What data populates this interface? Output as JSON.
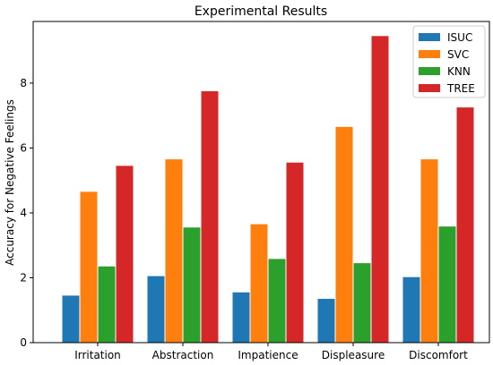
{
  "chart_data": {
    "type": "bar",
    "title": "Experimental Results",
    "xlabel": "",
    "ylabel": "Accuracy for Negative Feelings",
    "categories": [
      "Irritation",
      "Abstraction",
      "Impatience",
      "Displeasure",
      "Discomfort"
    ],
    "series": [
      {
        "name": "ISUC",
        "color": "#1f77b4",
        "values": [
          1.45,
          2.05,
          1.55,
          1.35,
          2.02
        ]
      },
      {
        "name": "SVC",
        "color": "#ff7f0e",
        "values": [
          4.65,
          5.65,
          3.65,
          6.65,
          5.65
        ]
      },
      {
        "name": "KNN",
        "color": "#2ca02c",
        "values": [
          2.35,
          3.55,
          2.58,
          2.45,
          3.58
        ]
      },
      {
        "name": "TREE",
        "color": "#d62728",
        "values": [
          5.45,
          7.75,
          5.55,
          9.45,
          7.25
        ]
      }
    ],
    "ylim": [
      0,
      9.9
    ],
    "yticks": [
      0,
      2,
      4,
      6,
      8
    ],
    "grid": false,
    "legend": "upper right"
  }
}
